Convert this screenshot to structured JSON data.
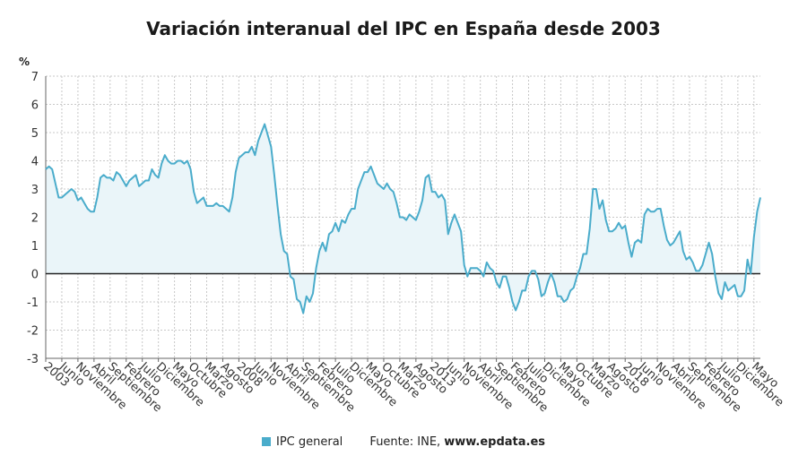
{
  "chart_data": {
    "type": "area",
    "title": "Variación interanual del IPC en España desde 2003",
    "ylabel": "%",
    "ylim": [
      -3,
      7
    ],
    "yticks": [
      -3,
      -2,
      -1,
      0,
      1,
      2,
      3,
      4,
      5,
      6,
      7
    ],
    "grid": true,
    "legend_position": "bottom",
    "x_start": "2003-01",
    "x_step_months": 1,
    "x_tick_labels": [
      "2003",
      "Junio",
      "Noviembre",
      "Abril",
      "Septiembre",
      "Febrero",
      "Julio",
      "Diciembre",
      "Mayo",
      "Octubre",
      "Marzo",
      "Agosto",
      "2008",
      "Junio",
      "Noviembre",
      "Abril",
      "Septiembre",
      "Febrero",
      "Julio",
      "Diciembre",
      "Mayo",
      "Octubre",
      "Marzo",
      "Agosto",
      "2013",
      "Junio",
      "Noviembre",
      "Abril",
      "Septiembre",
      "Febrero",
      "Julio",
      "Diciembre",
      "Mayo",
      "Octubre",
      "Marzo",
      "Agosto",
      "2018",
      "Junio",
      "Noviembre",
      "Abril",
      "Septiembre",
      "Febrero",
      "Julio",
      "Diciembre",
      "Mayo"
    ],
    "series": [
      {
        "name": "IPC general",
        "color": "#4aaccb",
        "values": [
          3.7,
          3.8,
          3.7,
          3.2,
          2.7,
          2.7,
          2.8,
          2.9,
          3.0,
          2.9,
          2.6,
          2.7,
          2.5,
          2.3,
          2.2,
          2.2,
          2.7,
          3.4,
          3.5,
          3.4,
          3.4,
          3.3,
          3.6,
          3.5,
          3.3,
          3.1,
          3.3,
          3.4,
          3.5,
          3.1,
          3.2,
          3.3,
          3.3,
          3.7,
          3.5,
          3.4,
          3.9,
          4.2,
          4.0,
          3.9,
          3.9,
          4.0,
          4.0,
          3.9,
          4.0,
          3.7,
          2.9,
          2.5,
          2.6,
          2.7,
          2.4,
          2.4,
          2.4,
          2.5,
          2.4,
          2.4,
          2.3,
          2.2,
          2.7,
          3.6,
          4.1,
          4.2,
          4.3,
          4.3,
          4.5,
          4.2,
          4.7,
          5.0,
          5.3,
          4.9,
          4.5,
          3.5,
          2.4,
          1.4,
          0.8,
          0.7,
          -0.1,
          -0.2,
          -0.9,
          -1.0,
          -1.4,
          -0.8,
          -1.0,
          -0.7,
          0.2,
          0.8,
          1.1,
          0.8,
          1.4,
          1.5,
          1.8,
          1.5,
          1.9,
          1.8,
          2.1,
          2.3,
          2.3,
          3.0,
          3.3,
          3.6,
          3.6,
          3.8,
          3.5,
          3.2,
          3.1,
          3.0,
          3.2,
          3.0,
          2.9,
          2.5,
          2.0,
          2.0,
          1.9,
          2.1,
          2.0,
          1.9,
          2.2,
          2.6,
          3.4,
          3.5,
          2.9,
          2.9,
          2.7,
          2.8,
          2.6,
          1.4,
          1.8,
          2.1,
          1.8,
          1.5,
          0.3,
          -0.1,
          0.2,
          0.2,
          0.2,
          0.1,
          -0.1,
          0.4,
          0.2,
          0.1,
          -0.3,
          -0.5,
          -0.1,
          -0.1,
          -0.5,
          -1.0,
          -1.3,
          -1.0,
          -0.6,
          -0.6,
          -0.1,
          0.1,
          0.1,
          -0.2,
          -0.8,
          -0.7,
          -0.3,
          0.0,
          -0.3,
          -0.8,
          -0.8,
          -1.0,
          -0.9,
          -0.6,
          -0.5,
          -0.1,
          0.2,
          0.7,
          0.7,
          1.6,
          3.0,
          3.0,
          2.3,
          2.6,
          1.9,
          1.5,
          1.5,
          1.6,
          1.8,
          1.6,
          1.7,
          1.1,
          0.6,
          1.1,
          1.2,
          1.1,
          2.1,
          2.3,
          2.2,
          2.2,
          2.3,
          2.3,
          1.7,
          1.2,
          1.0,
          1.1,
          1.3,
          1.5,
          0.8,
          0.5,
          0.6,
          0.4,
          0.1,
          0.1,
          0.3,
          0.7,
          1.1,
          0.7,
          -0.1,
          -0.7,
          -0.9,
          -0.3,
          -0.6,
          -0.5,
          -0.4,
          -0.8,
          -0.8,
          -0.6,
          0.5,
          0.0,
          1.3,
          2.2,
          2.7
        ]
      }
    ]
  },
  "legend": {
    "series_label": "IPC general",
    "source_prefix": "Fuente: INE,",
    "source_url": "www.epdata.es"
  }
}
